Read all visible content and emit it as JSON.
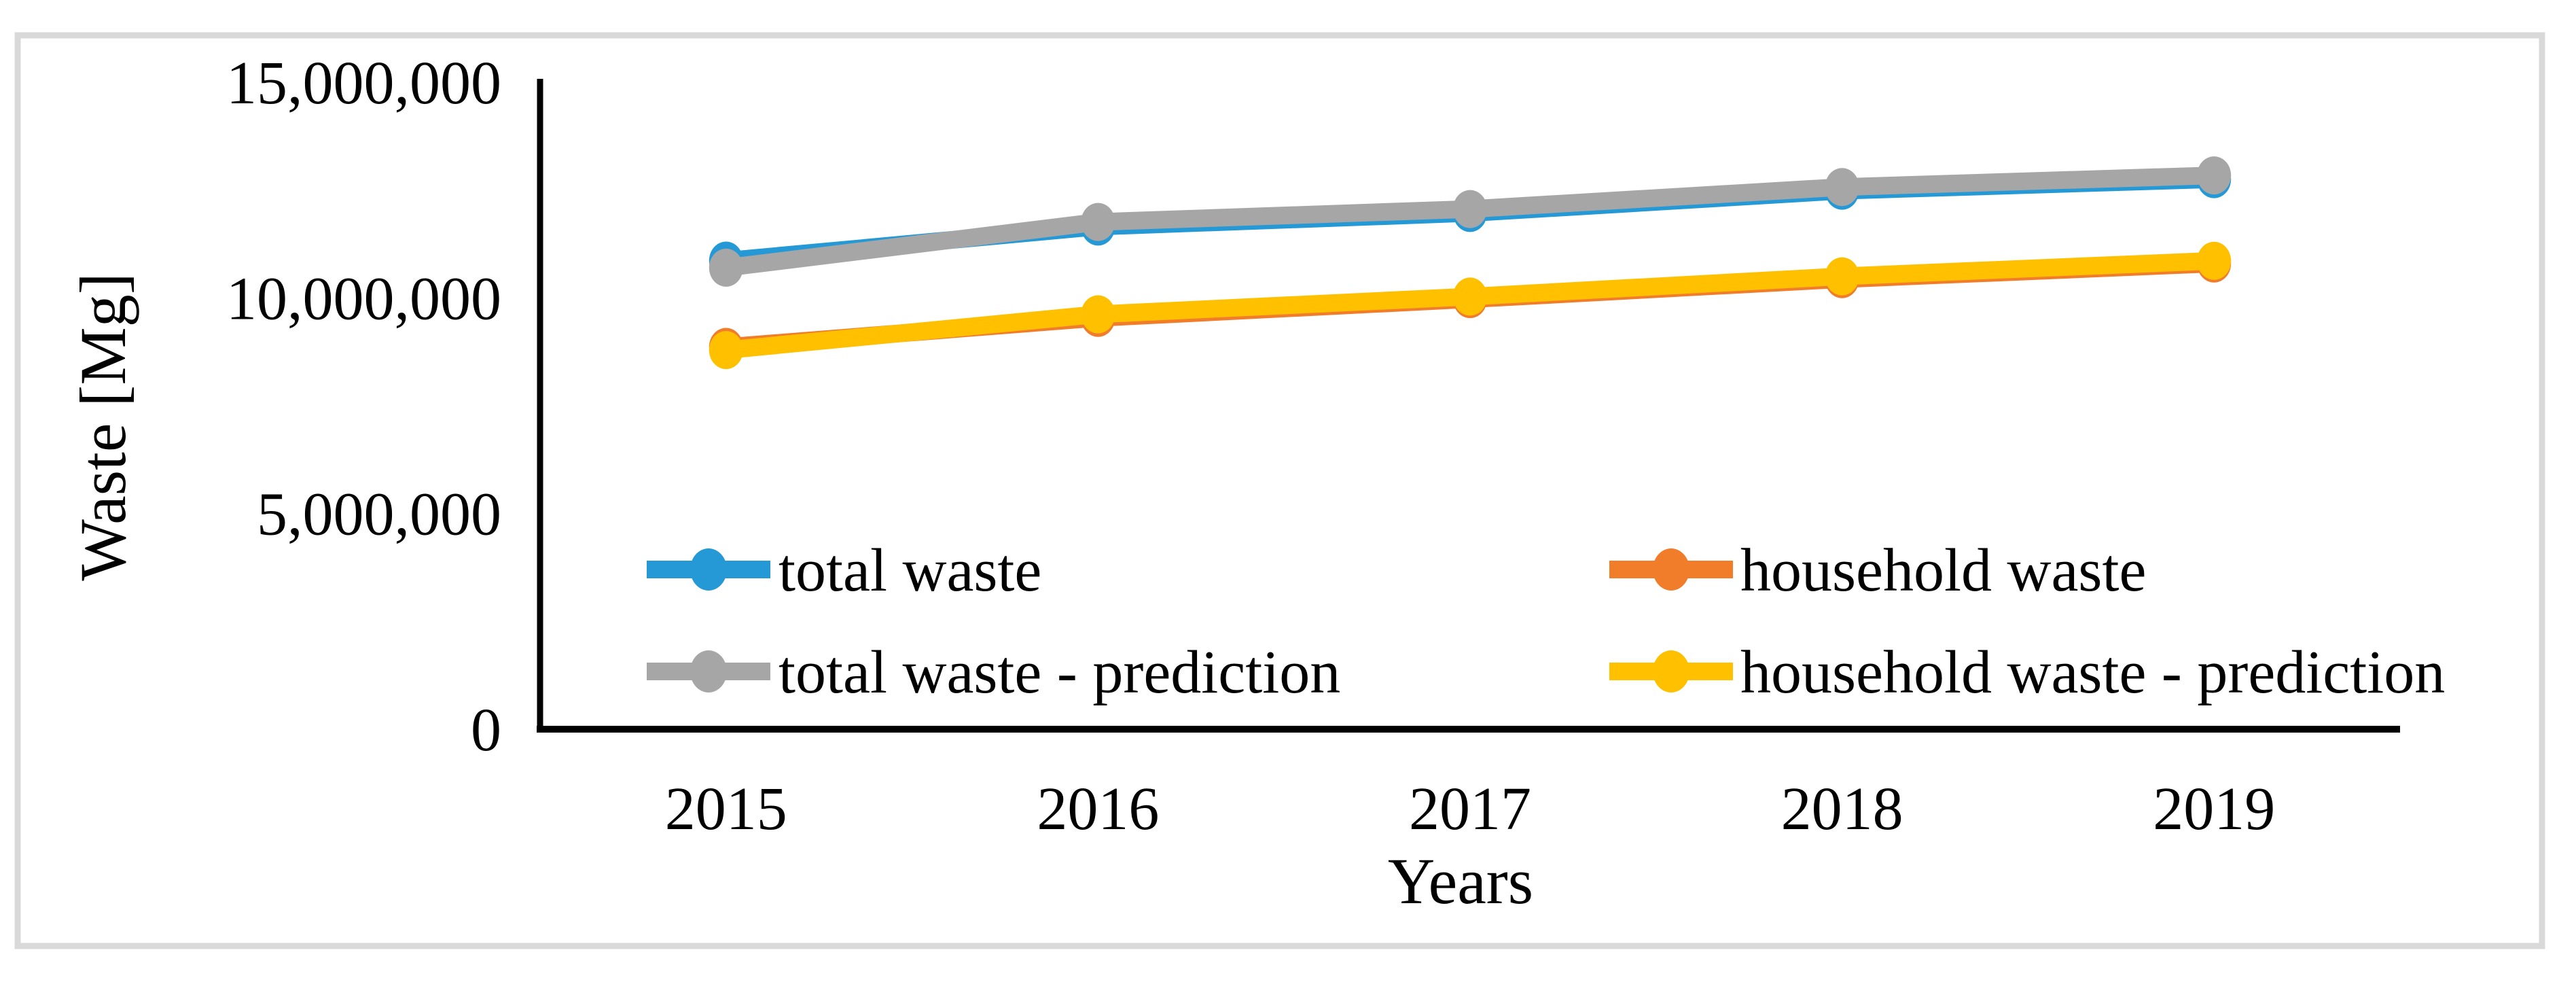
{
  "figure": {
    "background": "#FFFFFF",
    "border_color": "#D9D9D9",
    "axis_color": "#000000",
    "text_color": "#000000"
  },
  "chart_data": {
    "type": "line",
    "title": "",
    "xlabel": "Years",
    "ylabel": "Waste [Mg]",
    "x_categories": [
      "2015",
      "2016",
      "2017",
      "2018",
      "2019"
    ],
    "ylim": [
      0,
      15000000
    ],
    "yticks": [
      {
        "value": 15000000,
        "label": "15,000,000"
      },
      {
        "value": 10000000,
        "label": "10,000,000"
      },
      {
        "value": 5000000,
        "label": "5,000,000"
      },
      {
        "value": 0,
        "label": "0"
      }
    ],
    "grid": false,
    "marker": "circle",
    "series": [
      {
        "name": "total waste",
        "color": "#2499D6",
        "values": [
          10863500,
          11654300,
          11968700,
          12485400,
          12752800
        ]
      },
      {
        "name": "household waste",
        "color": "#F17D2A",
        "values": [
          8862500,
          9536300,
          9971200,
          10434800,
          10796900
        ]
      },
      {
        "name": "total waste - prediction",
        "color": "#A6A6A6",
        "values": [
          10700000,
          11760000,
          12060000,
          12570000,
          12840000
        ]
      },
      {
        "name": "household waste - prediction",
        "color": "#FFC000",
        "values": [
          8790000,
          9620000,
          10030000,
          10500000,
          10860000
        ]
      }
    ],
    "legend": {
      "position": "inside-bottom",
      "columns": 2,
      "entries": [
        {
          "series": 0,
          "label": "total waste",
          "column": 0,
          "row": 0
        },
        {
          "series": 1,
          "label": "household waste",
          "column": 1,
          "row": 0
        },
        {
          "series": 2,
          "label": "total waste - prediction",
          "column": 0,
          "row": 1
        },
        {
          "series": 3,
          "label": "household waste - prediction",
          "column": 1,
          "row": 1
        }
      ]
    }
  }
}
